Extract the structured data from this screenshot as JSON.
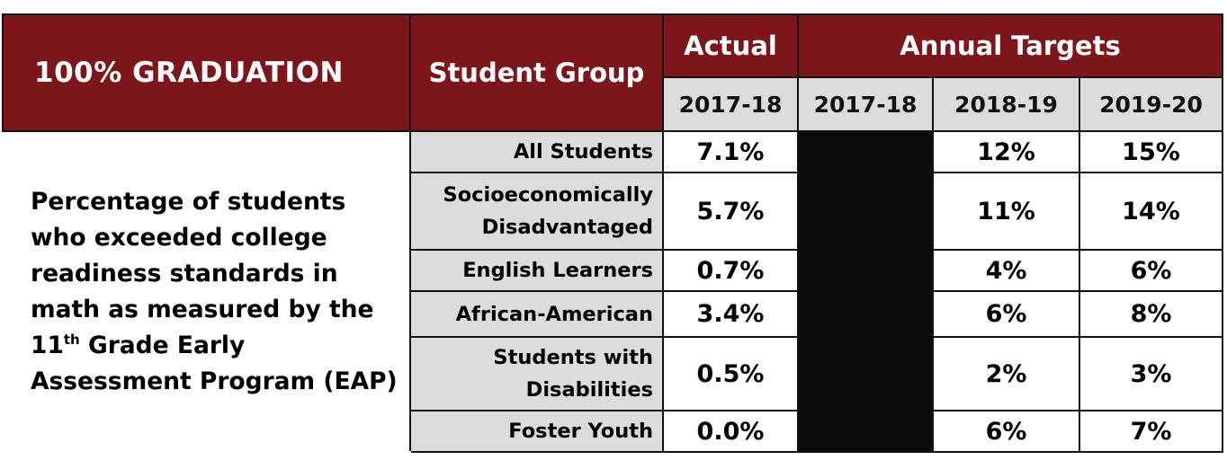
{
  "header": {
    "title": "100% GRADUATION",
    "student_group": "Student Group",
    "actual": "Actual",
    "annual_targets": "Annual Targets",
    "years": {
      "actual": "2017-18",
      "t1": "2017-18",
      "t2": "2018-19",
      "t3": "2019-20"
    }
  },
  "description": {
    "line1": "Percentage of students",
    "line2": "who exceeded college",
    "line3": "readiness standards in",
    "line4": "math as measured by the",
    "line5_pre": "11",
    "line5_sup": "th",
    "line5_post": " Grade Early",
    "line6": "Assessment Program (EAP)"
  },
  "rows": [
    {
      "group1": "All Students",
      "group2": "",
      "actual": "7.1%",
      "t2": "12%",
      "t3": "15%"
    },
    {
      "group1": "Socioeconomically",
      "group2": "Disadvantaged",
      "actual": "5.7%",
      "t2": "11%",
      "t3": "14%"
    },
    {
      "group1": "English Learners",
      "group2": "",
      "actual": "0.7%",
      "t2": "4%",
      "t3": "6%"
    },
    {
      "group1": "African-American",
      "group2": "",
      "actual": "3.4%",
      "t2": "6%",
      "t3": "8%"
    },
    {
      "group1": "Students with",
      "group2": "Disabilities",
      "actual": "0.5%",
      "t2": "2%",
      "t3": "3%"
    },
    {
      "group1": "Foster Youth",
      "group2": "",
      "actual": "0.0%",
      "t2": "6%",
      "t3": "7%"
    }
  ],
  "colors": {
    "header_bg": "#7c161b",
    "subheader_bg": "#dcdcdc",
    "group_bg": "#dcdcdc",
    "masked_cell": "#0a0a0a"
  }
}
